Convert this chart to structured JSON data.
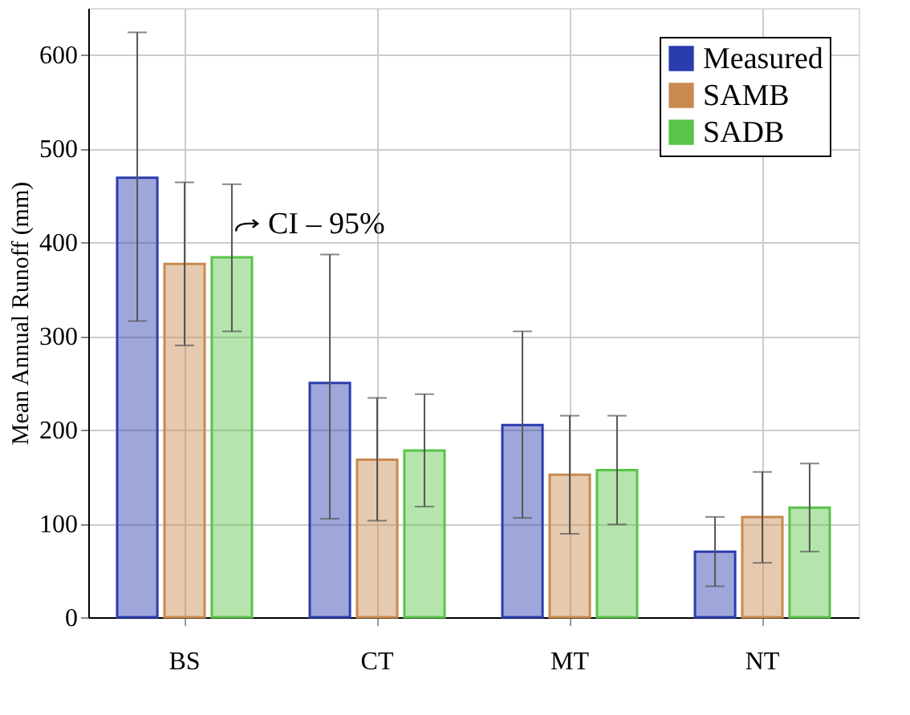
{
  "chart_data": {
    "type": "bar",
    "ylabel": "Mean Annual Runoff (mm)",
    "categories": [
      "BS",
      "CT",
      "MT",
      "NT"
    ],
    "series": [
      {
        "name": "Measured",
        "color": "#2b3cae",
        "values": [
          469,
          250,
          205,
          70
        ],
        "errors": [
          [
            316,
            624
          ],
          [
            105,
            387
          ],
          [
            106,
            305
          ],
          [
            33,
            107
          ]
        ]
      },
      {
        "name": "SAMB",
        "color": "#c88a4e",
        "values": [
          377,
          168,
          152,
          107
        ],
        "errors": [
          [
            290,
            464
          ],
          [
            103,
            234
          ],
          [
            89,
            215
          ],
          [
            58,
            155
          ]
        ]
      },
      {
        "name": "SADB",
        "color": "#5ac34a",
        "values": [
          384,
          178,
          157,
          117
        ],
        "errors": [
          [
            305,
            462
          ],
          [
            118,
            238
          ],
          [
            99,
            215
          ],
          [
            70,
            164
          ]
        ]
      }
    ],
    "ylim": [
      0,
      650
    ],
    "yticks": [
      0,
      100,
      200,
      300,
      400,
      500,
      600
    ],
    "grid": true,
    "legend": "top right",
    "annotations": [
      {
        "text": "CI – 95%",
        "x": "BS",
        "y": 420
      }
    ]
  }
}
